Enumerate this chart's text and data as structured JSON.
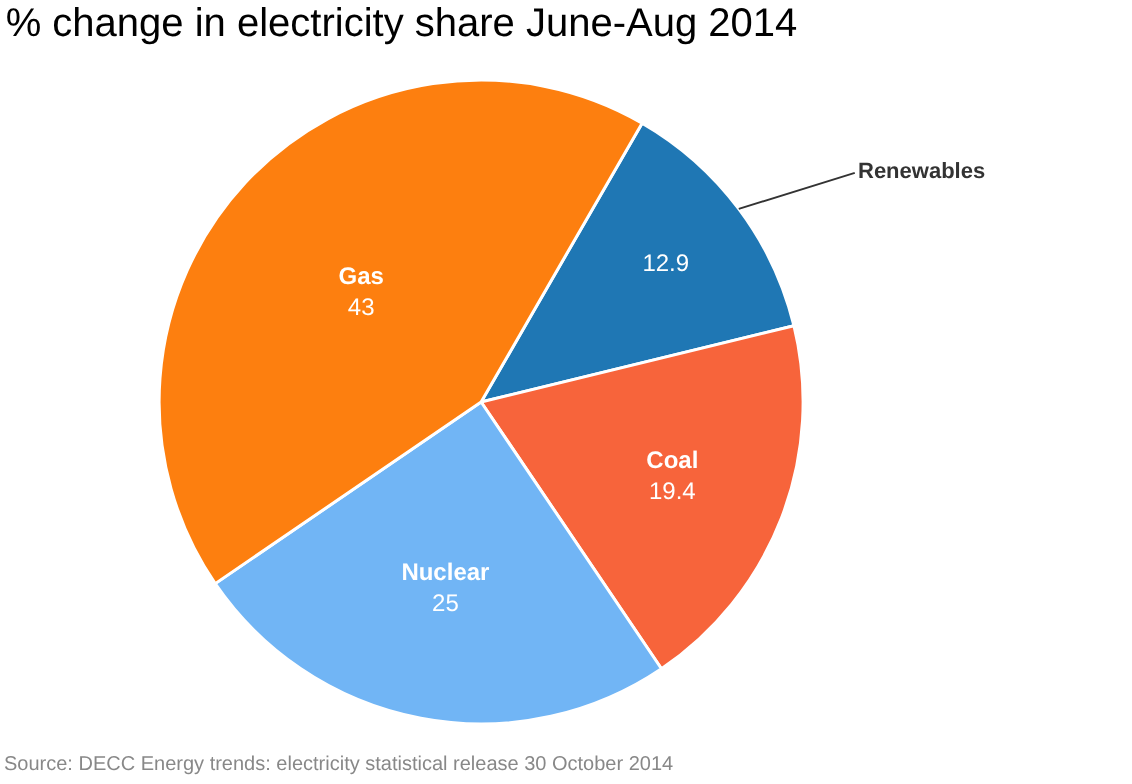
{
  "chart_data": {
    "type": "pie",
    "title": "% change in electricity share June-Aug 2014",
    "categories": [
      "Renewables",
      "Coal",
      "Nuclear",
      "Gas"
    ],
    "values": [
      12.9,
      19.4,
      25,
      43
    ],
    "colors": [
      "#1f77b4",
      "#f7643b",
      "#71b5f5",
      "#fd7f0f"
    ],
    "data_labels": true,
    "legend": false,
    "annotations": [
      "Source: DECC Energy trends: electricity statistical release 30 October 2014"
    ]
  }
}
